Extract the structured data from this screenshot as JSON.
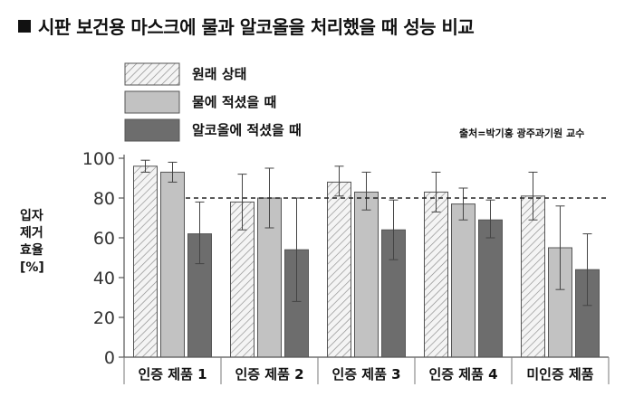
{
  "title": "시판 보건용 마스크에 물과 알코올을 처리했을 때 성능 비교",
  "source": "출처=박기홍 광주과기원 교수",
  "chart_data": {
    "type": "bar",
    "ylabel": "입자\n제거\n효율\n[%]",
    "ylim": [
      0,
      100
    ],
    "yticks": [
      0,
      20,
      40,
      60,
      80,
      100
    ],
    "reference_line": 80,
    "categories": [
      "인증 제품 1",
      "인증 제품 2",
      "인증 제품 3",
      "인증 제품 4",
      "미인증 제품"
    ],
    "series": [
      {
        "name": "원래 상태",
        "pattern": "hatch",
        "color": "#f1f1f1",
        "values": [
          96,
          78,
          88,
          83,
          81
        ],
        "err_low": [
          93,
          64,
          81,
          73,
          69
        ],
        "err_high": [
          99,
          92,
          96,
          93,
          93
        ]
      },
      {
        "name": "물에 적셨을 때",
        "pattern": "solid",
        "color": "#c2c2c2",
        "values": [
          93,
          80,
          83,
          77,
          55
        ],
        "err_low": [
          88,
          65,
          74,
          69,
          34
        ],
        "err_high": [
          98,
          95,
          93,
          85,
          76
        ]
      },
      {
        "name": "알코올에 적셨을 때",
        "pattern": "solid",
        "color": "#6d6d6d",
        "values": [
          62,
          54,
          64,
          69,
          44
        ],
        "err_low": [
          47,
          28,
          49,
          60,
          26
        ],
        "err_high": [
          78,
          80,
          79,
          79,
          62
        ]
      }
    ]
  }
}
